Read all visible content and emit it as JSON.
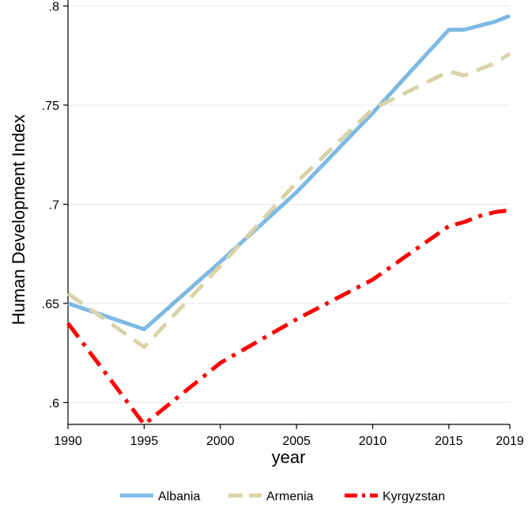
{
  "chart_data": {
    "type": "line",
    "title": "",
    "xlabel": "year",
    "ylabel": "Human Development Index",
    "xlim": [
      1990,
      2019
    ],
    "ylim": [
      0.589,
      0.803
    ],
    "x_ticks": [
      {
        "value": 1990,
        "label": "1990"
      },
      {
        "value": 1995,
        "label": "1995"
      },
      {
        "value": 2000,
        "label": "2000"
      },
      {
        "value": 2005,
        "label": "2005"
      },
      {
        "value": 2010,
        "label": "2010"
      },
      {
        "value": 2015,
        "label": "2015"
      },
      {
        "value": 2019,
        "label": "2019"
      }
    ],
    "y_ticks": [
      {
        "value": 0.6,
        "label": ".6"
      },
      {
        "value": 0.65,
        "label": ".65"
      },
      {
        "value": 0.7,
        "label": ".7"
      },
      {
        "value": 0.75,
        "label": ".75"
      },
      {
        "value": 0.8,
        "label": ".8"
      }
    ],
    "grid": "horizontal",
    "legend_position": "bottom",
    "x": [
      1990,
      1995,
      2000,
      2005,
      2010,
      2015,
      2016,
      2017,
      2018,
      2019
    ],
    "series": [
      {
        "name": "Albania",
        "color": "#7db9e3",
        "style": "solid",
        "values": [
          0.65,
          0.637,
          0.671,
          0.706,
          0.746,
          0.788,
          0.788,
          0.79,
          0.792,
          0.795
        ]
      },
      {
        "name": "Armenia",
        "color": "#d8d3a8",
        "style": "dash",
        "values": [
          0.655,
          0.628,
          0.669,
          0.711,
          0.748,
          0.767,
          0.765,
          0.768,
          0.771,
          0.776
        ]
      },
      {
        "name": "Kyrgyzstan",
        "color": "#ff0000",
        "style": "dashdot",
        "values": [
          0.64,
          0.589,
          0.62,
          0.642,
          0.662,
          0.689,
          0.691,
          0.694,
          0.696,
          0.697
        ]
      }
    ]
  }
}
